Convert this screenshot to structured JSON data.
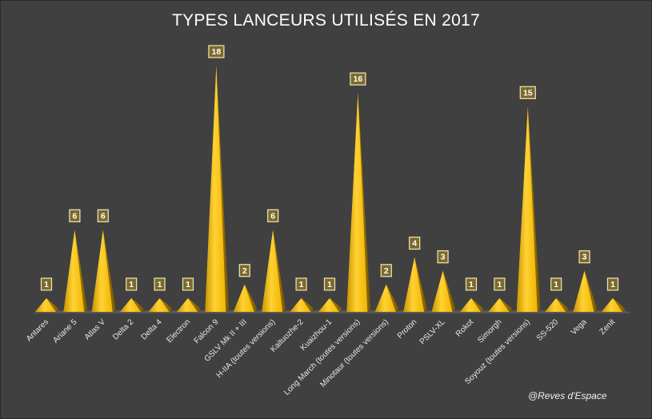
{
  "chart_data": {
    "type": "bar",
    "style": "3d-pyramid",
    "title": "TYPES LANCEURS UTILISÉS EN 2017",
    "xlabel": "",
    "ylabel": "",
    "ylim": [
      0,
      18
    ],
    "grid": false,
    "legend": "none",
    "categories": [
      "Antares",
      "Ariane 5",
      "Atlas V",
      "Delta 2",
      "Delta 4",
      "Electron",
      "Falcon 9",
      "GSLV Mk II + III",
      "H-IIA (toutes versions)",
      "Kaituozhe-2",
      "Kuaizhou-1",
      "Long March (toutes versions)",
      "Minotaur (toutes versions)",
      "Proton",
      "PSLV-XL",
      "Rokot",
      "Simorgh",
      "Soyouz (toutes versions)",
      "SS-520",
      "Vega",
      "Zenit"
    ],
    "values": [
      1,
      6,
      6,
      1,
      1,
      1,
      18,
      2,
      6,
      1,
      1,
      16,
      2,
      4,
      3,
      1,
      1,
      15,
      1,
      3,
      1
    ],
    "colors": {
      "pyramid_front": "#f2b800",
      "pyramid_side": "#9a7200",
      "pyramid_tip_light": "#ffd84a",
      "label_box": "#7b6a2e",
      "label_border": "#f3e6b8",
      "floor": "#5a5a5a"
    }
  },
  "watermark": "@Reves d'Espace"
}
